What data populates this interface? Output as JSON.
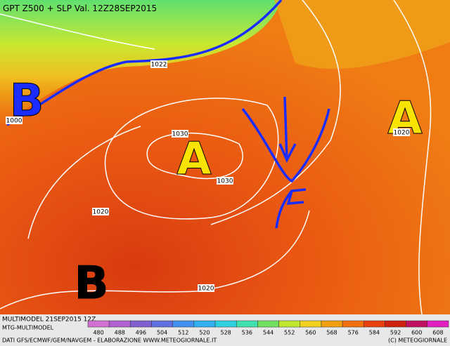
{
  "header": {
    "title": "GPT Z500 + SLP Val. 12Z28SEP2015"
  },
  "centers": [
    {
      "label": "B",
      "color": "#1a2cff"
    },
    {
      "label": "A",
      "color": "#f8e400"
    },
    {
      "label": "A",
      "color": "#f8e400"
    },
    {
      "label": "B",
      "color": "#000000"
    }
  ],
  "isobar_labels": [
    "1022",
    "1000",
    "1030",
    "1030",
    "1020",
    "1020",
    "1020"
  ],
  "footer": {
    "run": "MULTIMODEL 21SEP2015 12Z",
    "model": "MTG-MULTIMODEL",
    "sources": "DATI GFS/ECMWF/GEM/NAVGEM - ELABORAZIONE WWW.METEOGIORNALE.IT",
    "copyright": "(C) METEOGIORNALE"
  },
  "legend": {
    "ticks": [
      480,
      488,
      496,
      504,
      512,
      520,
      528,
      536,
      544,
      552,
      560,
      568,
      576,
      584,
      592,
      600,
      608
    ],
    "colors": [
      "#d070d0",
      "#b060d0",
      "#8060d0",
      "#6070e0",
      "#4090f0",
      "#30b0f0",
      "#30d0e0",
      "#40e0b0",
      "#70e060",
      "#c0e830",
      "#f0d020",
      "#f0a010",
      "#f07010",
      "#e84010",
      "#d02010",
      "#c01060",
      "#e020c0"
    ]
  }
}
